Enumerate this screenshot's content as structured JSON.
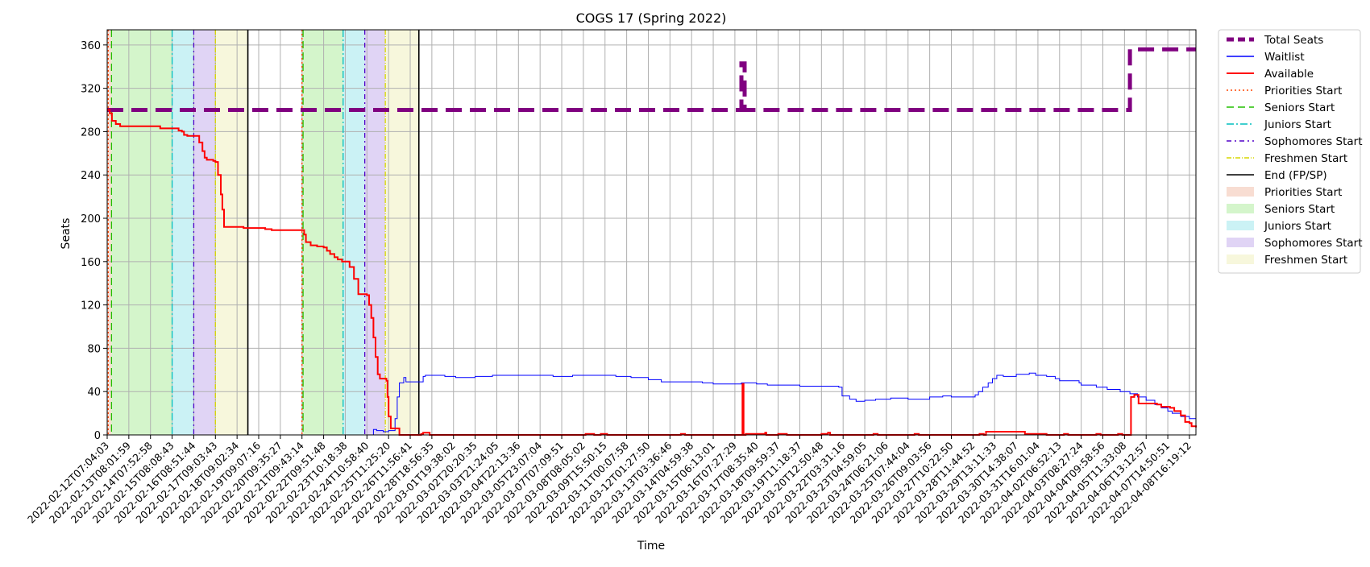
{
  "chart_data": {
    "type": "line",
    "title": "COGS 17 (Spring 2022)",
    "xlabel": "Time",
    "ylabel": "Seats",
    "ylim": [
      0,
      374
    ],
    "y_ticks": [
      0,
      40,
      80,
      120,
      160,
      200,
      240,
      280,
      320,
      360
    ],
    "x_tick_labels": [
      "2022-02-12T07:04:03",
      "2022-02-13T08:01:59",
      "2022-02-14T07:52:58",
      "2022-02-15T08:08:43",
      "2022-02-16T08:51:44",
      "2022-02-17T09:03:43",
      "2022-02-18T09:02:34",
      "2022-02-19T09:07:16",
      "2022-02-20T09:35:27",
      "2022-02-21T09:43:14",
      "2022-02-22T09:51:48",
      "2022-02-23T10:18:38",
      "2022-02-24T10:58:40",
      "2022-02-25T11:25:20",
      "2022-02-26T11:56:41",
      "2022-02-28T18:56:35",
      "2022-03-01T19:38:02",
      "2022-03-02T20:20:35",
      "2022-03-03T21:24:05",
      "2022-03-04T22:13:36",
      "2022-03-05T23:07:04",
      "2022-03-07T07:09:51",
      "2022-03-08T08:05:02",
      "2022-03-09T15:50:15",
      "2022-03-11T00:07:58",
      "2022-03-12T01:27:50",
      "2022-03-13T03:36:46",
      "2022-03-14T04:59:38",
      "2022-03-15T06:13:01",
      "2022-03-16T07:27:29",
      "2022-03-17T08:35:40",
      "2022-03-18T09:59:37",
      "2022-03-19T11:18:37",
      "2022-03-20T12:50:48",
      "2022-03-22T03:31:16",
      "2022-03-23T04:59:05",
      "2022-03-24T06:21:06",
      "2022-03-25T07:44:04",
      "2022-03-26T09:03:56",
      "2022-03-27T10:22:50",
      "2022-03-28T11:44:52",
      "2022-03-29T13:11:33",
      "2022-03-30T14:38:07",
      "2022-03-31T16:01:04",
      "2022-04-02T06:52:13",
      "2022-04-03T08:27:24",
      "2022-04-04T09:58:56",
      "2022-04-05T11:33:08",
      "2022-04-06T13:12:57",
      "2022-04-07T14:50:51",
      "2022-04-08T16:19:12"
    ],
    "grid": true,
    "legend_position": "outside right",
    "series": [
      {
        "name": "Total Seats",
        "kind": "line",
        "color": "#800080",
        "style": "dashed",
        "width": 5,
        "points": [
          [
            0,
            300
          ],
          [
            29.3,
            300
          ],
          [
            29.3,
            343
          ],
          [
            29.45,
            343
          ],
          [
            29.45,
            300
          ],
          [
            47.25,
            300
          ],
          [
            47.25,
            356
          ],
          [
            50.3,
            356
          ]
        ]
      },
      {
        "name": "Waitlist",
        "kind": "step",
        "color": "#0000ff",
        "style": "solid",
        "width": 1,
        "points": [
          [
            0,
            0
          ],
          [
            12.1,
            0
          ],
          [
            12.3,
            5
          ],
          [
            12.45,
            4
          ],
          [
            12.6,
            4
          ],
          [
            12.75,
            3
          ],
          [
            13.0,
            4
          ],
          [
            13.15,
            4
          ],
          [
            13.3,
            15
          ],
          [
            13.4,
            35
          ],
          [
            13.5,
            48
          ],
          [
            13.7,
            53
          ],
          [
            13.8,
            49
          ],
          [
            14.6,
            54
          ],
          [
            14.7,
            55
          ],
          [
            15.6,
            54
          ],
          [
            16.1,
            53
          ],
          [
            17.0,
            54
          ],
          [
            17.8,
            55
          ],
          [
            18.3,
            55
          ],
          [
            20.5,
            55
          ],
          [
            20.6,
            54
          ],
          [
            21.5,
            55
          ],
          [
            23.1,
            55
          ],
          [
            23.5,
            54
          ],
          [
            24.2,
            53
          ],
          [
            25.0,
            51
          ],
          [
            25.6,
            49
          ],
          [
            26.0,
            49
          ],
          [
            27.0,
            49
          ],
          [
            27.5,
            48
          ],
          [
            28.0,
            47
          ],
          [
            29.0,
            47
          ],
          [
            29.3,
            48
          ],
          [
            30.0,
            47
          ],
          [
            30.5,
            46
          ],
          [
            31.2,
            46
          ],
          [
            32.0,
            45
          ],
          [
            33.8,
            44
          ],
          [
            33.95,
            36
          ],
          [
            34.3,
            33
          ],
          [
            34.6,
            31
          ],
          [
            35.0,
            32
          ],
          [
            35.5,
            33
          ],
          [
            36.2,
            34
          ],
          [
            37.0,
            33
          ],
          [
            37.7,
            33
          ],
          [
            38.0,
            35
          ],
          [
            38.6,
            36
          ],
          [
            39.0,
            35
          ],
          [
            39.8,
            35
          ],
          [
            40.1,
            37
          ],
          [
            40.25,
            40
          ],
          [
            40.45,
            44
          ],
          [
            40.7,
            48
          ],
          [
            40.9,
            52
          ],
          [
            41.1,
            55
          ],
          [
            41.4,
            54
          ],
          [
            42.0,
            56
          ],
          [
            42.6,
            57
          ],
          [
            42.9,
            55
          ],
          [
            43.4,
            54
          ],
          [
            43.8,
            52
          ],
          [
            44.0,
            50
          ],
          [
            44.9,
            48
          ],
          [
            45.0,
            46
          ],
          [
            45.7,
            44
          ],
          [
            46.2,
            42
          ],
          [
            46.8,
            40
          ],
          [
            47.25,
            38
          ],
          [
            47.6,
            35
          ],
          [
            48.0,
            32
          ],
          [
            48.4,
            28
          ],
          [
            48.7,
            25
          ],
          [
            49.0,
            22
          ],
          [
            49.2,
            20
          ],
          [
            49.6,
            17
          ],
          [
            50.0,
            15
          ],
          [
            50.3,
            14
          ]
        ]
      },
      {
        "name": "Available",
        "kind": "step",
        "color": "#ff0000",
        "style": "solid",
        "width": 2,
        "points": [
          [
            0,
            300
          ],
          [
            0.12,
            297
          ],
          [
            0.22,
            290
          ],
          [
            0.4,
            287
          ],
          [
            0.6,
            285
          ],
          [
            2.2,
            285
          ],
          [
            2.45,
            283
          ],
          [
            3.2,
            283
          ],
          [
            3.3,
            281
          ],
          [
            3.45,
            280
          ],
          [
            3.55,
            277
          ],
          [
            3.7,
            276
          ],
          [
            4.1,
            276
          ],
          [
            4.25,
            270
          ],
          [
            4.4,
            262
          ],
          [
            4.5,
            256
          ],
          [
            4.6,
            254
          ],
          [
            4.9,
            253
          ],
          [
            5.0,
            252
          ],
          [
            5.12,
            240
          ],
          [
            5.25,
            222
          ],
          [
            5.32,
            208
          ],
          [
            5.4,
            192
          ],
          [
            6.3,
            191
          ],
          [
            7.3,
            190
          ],
          [
            7.6,
            189
          ],
          [
            9.05,
            189
          ],
          [
            9.1,
            185
          ],
          [
            9.18,
            178
          ],
          [
            9.4,
            175
          ],
          [
            9.7,
            174
          ],
          [
            10.0,
            173
          ],
          [
            10.15,
            170
          ],
          [
            10.3,
            167
          ],
          [
            10.5,
            164
          ],
          [
            10.65,
            162
          ],
          [
            10.85,
            160
          ],
          [
            11.05,
            160
          ],
          [
            11.2,
            155
          ],
          [
            11.4,
            144
          ],
          [
            11.6,
            130
          ],
          [
            12.0,
            129
          ],
          [
            12.1,
            120
          ],
          [
            12.2,
            108
          ],
          [
            12.3,
            90
          ],
          [
            12.4,
            72
          ],
          [
            12.5,
            56
          ],
          [
            12.6,
            52
          ],
          [
            12.9,
            50
          ],
          [
            12.95,
            35
          ],
          [
            13.0,
            17
          ],
          [
            13.1,
            6
          ],
          [
            13.45,
            6
          ],
          [
            13.5,
            0
          ],
          [
            14.4,
            0
          ],
          [
            14.5,
            1
          ],
          [
            14.6,
            2
          ],
          [
            14.8,
            2
          ],
          [
            14.9,
            0
          ],
          [
            22.0,
            0
          ],
          [
            22.1,
            1
          ],
          [
            22.5,
            0
          ],
          [
            22.8,
            1
          ],
          [
            23.1,
            0
          ],
          [
            26.4,
            0
          ],
          [
            26.5,
            1
          ],
          [
            26.7,
            0
          ],
          [
            29.3,
            0
          ],
          [
            29.35,
            47
          ],
          [
            29.4,
            0
          ],
          [
            29.5,
            1
          ],
          [
            30.3,
            1
          ],
          [
            30.4,
            2
          ],
          [
            30.45,
            0
          ],
          [
            30.9,
            0
          ],
          [
            31.0,
            1
          ],
          [
            31.3,
            1
          ],
          [
            31.4,
            0
          ],
          [
            32.9,
            0
          ],
          [
            33.0,
            1
          ],
          [
            33.3,
            2
          ],
          [
            33.4,
            0
          ],
          [
            35.3,
            0
          ],
          [
            35.4,
            1
          ],
          [
            35.6,
            0
          ],
          [
            37.2,
            0
          ],
          [
            37.3,
            1
          ],
          [
            37.5,
            0
          ],
          [
            40.2,
            0
          ],
          [
            40.3,
            1
          ],
          [
            40.5,
            0
          ],
          [
            40.6,
            3
          ],
          [
            42.3,
            3
          ],
          [
            42.4,
            1
          ],
          [
            43.3,
            1
          ],
          [
            43.4,
            0
          ],
          [
            44.1,
            0
          ],
          [
            44.2,
            1
          ],
          [
            44.4,
            0
          ],
          [
            45.6,
            0
          ],
          [
            45.7,
            1
          ],
          [
            45.9,
            0
          ],
          [
            46.6,
            0
          ],
          [
            46.7,
            1
          ],
          [
            46.9,
            0
          ],
          [
            47.25,
            0
          ],
          [
            47.3,
            35
          ],
          [
            47.45,
            37
          ],
          [
            47.55,
            37
          ],
          [
            47.65,
            29
          ],
          [
            48.5,
            28
          ],
          [
            48.7,
            26
          ],
          [
            49.1,
            25
          ],
          [
            49.3,
            22
          ],
          [
            49.6,
            18
          ],
          [
            49.8,
            12
          ],
          [
            50.0,
            11
          ],
          [
            50.1,
            8
          ],
          [
            50.3,
            7
          ]
        ]
      }
    ],
    "vertical_markers": [
      {
        "name": "Priorities Start",
        "color": "#ff4500",
        "style": "dotted",
        "x": [
          0.05,
          9.0
        ]
      },
      {
        "name": "Seniors Start",
        "color": "#22c000",
        "style": "dashed",
        "x": [
          0.2,
          9.05
        ]
      },
      {
        "name": "Juniors Start",
        "color": "#00bfbf",
        "style": "dashdot",
        "x": [
          3.0,
          10.9
        ]
      },
      {
        "name": "Sophomores Start",
        "color": "#5000c8",
        "style": "dashdot-dense",
        "x": [
          4.0,
          11.9
        ]
      },
      {
        "name": "Freshmen Start",
        "color": "#d7d700",
        "style": "dashdot-thin",
        "x": [
          5.0,
          12.85
        ]
      },
      {
        "name": "End (FP/SP)",
        "color": "#000000",
        "style": "solid",
        "x": [
          6.5,
          14.4
        ]
      }
    ],
    "shaded_regions": [
      {
        "name": "Priorities Start",
        "color": "#f4c7b4",
        "spans": [
          [
            0,
            0.2
          ],
          [
            9.0,
            9.05
          ]
        ]
      },
      {
        "name": "Seniors Start",
        "color": "#b8eea8",
        "spans": [
          [
            0.2,
            3.0
          ],
          [
            9.05,
            10.9
          ]
        ]
      },
      {
        "name": "Juniors Start",
        "color": "#a9e9ef",
        "spans": [
          [
            3.0,
            4.0
          ],
          [
            10.9,
            11.9
          ]
        ]
      },
      {
        "name": "Sophomores Start",
        "color": "#cbb8ee",
        "spans": [
          [
            4.0,
            5.0
          ],
          [
            11.9,
            12.85
          ]
        ]
      },
      {
        "name": "Freshmen Start",
        "color": "#f2f2c4",
        "spans": [
          [
            5.0,
            6.5
          ],
          [
            12.85,
            14.4
          ]
        ]
      }
    ],
    "legend": [
      {
        "label": "Total Seats",
        "kind": "line",
        "color": "#800080",
        "style": "dashed"
      },
      {
        "label": "Waitlist",
        "kind": "line",
        "color": "#0000ff",
        "style": "solid"
      },
      {
        "label": "Available",
        "kind": "line",
        "color": "#ff0000",
        "style": "solid"
      },
      {
        "label": "Priorities Start",
        "kind": "line",
        "color": "#ff4500",
        "style": "dotted"
      },
      {
        "label": "Seniors Start",
        "kind": "line",
        "color": "#22c000",
        "style": "dashed"
      },
      {
        "label": "Juniors Start",
        "kind": "line",
        "color": "#00bfbf",
        "style": "dashdot"
      },
      {
        "label": "Sophomores Start",
        "kind": "line",
        "color": "#5000c8",
        "style": "dashdot-dense"
      },
      {
        "label": "Freshmen Start",
        "kind": "line",
        "color": "#d7d700",
        "style": "dashdot-thin"
      },
      {
        "label": "End (FP/SP)",
        "kind": "line",
        "color": "#000000",
        "style": "solid"
      },
      {
        "label": "Priorities Start",
        "kind": "patch",
        "color": "#f4c7b4"
      },
      {
        "label": "Seniors Start",
        "kind": "patch",
        "color": "#b8eea8"
      },
      {
        "label": "Juniors Start",
        "kind": "patch",
        "color": "#a9e9ef"
      },
      {
        "label": "Sophomores Start",
        "kind": "patch",
        "color": "#cbb8ee"
      },
      {
        "label": "Freshmen Start",
        "kind": "patch",
        "color": "#f2f2c4"
      }
    ]
  }
}
